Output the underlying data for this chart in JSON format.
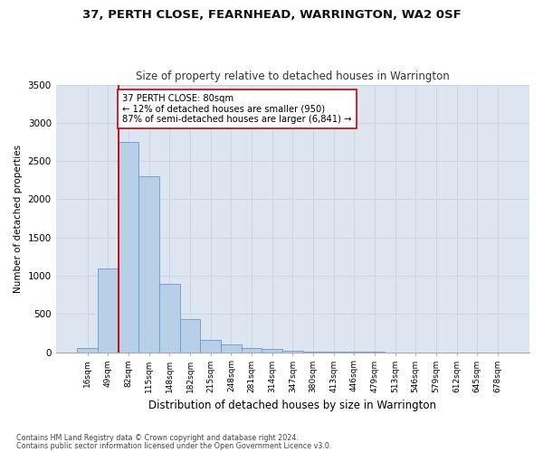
{
  "title1": "37, PERTH CLOSE, FEARNHEAD, WARRINGTON, WA2 0SF",
  "title2": "Size of property relative to detached houses in Warrington",
  "xlabel": "Distribution of detached houses by size in Warrington",
  "ylabel": "Number of detached properties",
  "categories": [
    "16sqm",
    "49sqm",
    "82sqm",
    "115sqm",
    "148sqm",
    "182sqm",
    "215sqm",
    "248sqm",
    "281sqm",
    "314sqm",
    "347sqm",
    "380sqm",
    "413sqm",
    "446sqm",
    "479sqm",
    "513sqm",
    "546sqm",
    "579sqm",
    "612sqm",
    "645sqm",
    "678sqm"
  ],
  "values": [
    50,
    1100,
    2750,
    2300,
    900,
    430,
    160,
    100,
    60,
    40,
    20,
    10,
    5,
    3,
    2,
    1,
    1,
    0,
    0,
    0,
    0
  ],
  "bar_color": "#b8cfe8",
  "bar_edge_color": "#6699cc",
  "vline_color": "#cc0000",
  "annotation_text": "37 PERTH CLOSE: 80sqm\n← 12% of detached houses are smaller (950)\n87% of semi-detached houses are larger (6,841) →",
  "annotation_box_color": "#ffffff",
  "annotation_box_edge": "#cc0000",
  "grid_color": "#ccd6e8",
  "background_color": "#dde6f0",
  "ylim": [
    0,
    3500
  ],
  "yticks": [
    0,
    500,
    1000,
    1500,
    2000,
    2500,
    3000,
    3500
  ],
  "footer1": "Contains HM Land Registry data © Crown copyright and database right 2024.",
  "footer2": "Contains public sector information licensed under the Open Government Licence v3.0."
}
